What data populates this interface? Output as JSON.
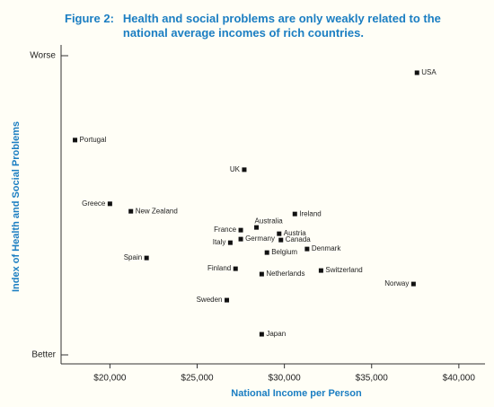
{
  "chart_data": {
    "type": "scatter",
    "figure_label": "Figure 2:",
    "title": "Health and social problems are only weakly related to the national average incomes of rich countries.",
    "x_label": "National Income per Person",
    "y_label": "Index of Health and Social Problems",
    "color": "#111111",
    "xlim": [
      17200,
      41500
    ],
    "xticks": [
      {
        "value": 20000,
        "label": "$20,000"
      },
      {
        "value": 25000,
        "label": "$25,000"
      },
      {
        "value": 30000,
        "label": "$30,000"
      },
      {
        "value": 35000,
        "label": "$35,000"
      },
      {
        "value": 40000,
        "label": "$40,000"
      }
    ],
    "ylim": [
      -3,
      103
    ],
    "yticks": [
      {
        "value": 0,
        "label": "Better"
      },
      {
        "value": 100,
        "label": "Worse"
      }
    ],
    "points": [
      {
        "name": "USA",
        "x": 37600,
        "y": 94.3
      },
      {
        "name": "Portugal",
        "x": 18000,
        "y": 71.8
      },
      {
        "name": "UK",
        "x": 27700,
        "y": 61.9
      },
      {
        "name": "Greece",
        "x": 20000,
        "y": 50.5
      },
      {
        "name": "New Zealand",
        "x": 21200,
        "y": 48.0
      },
      {
        "name": "Ireland",
        "x": 30600,
        "y": 47.1
      },
      {
        "name": "Australia",
        "x": 28400,
        "y": 42.6
      },
      {
        "name": "France",
        "x": 27500,
        "y": 41.7
      },
      {
        "name": "Austria",
        "x": 29700,
        "y": 40.5
      },
      {
        "name": "Germany",
        "x": 27500,
        "y": 38.7
      },
      {
        "name": "Canada",
        "x": 29800,
        "y": 38.4
      },
      {
        "name": "Italy",
        "x": 26900,
        "y": 37.5
      },
      {
        "name": "Belgium",
        "x": 29000,
        "y": 34.2
      },
      {
        "name": "Denmark",
        "x": 31300,
        "y": 35.4
      },
      {
        "name": "Spain",
        "x": 22100,
        "y": 32.4
      },
      {
        "name": "Finland",
        "x": 27200,
        "y": 28.8
      },
      {
        "name": "Switzerland",
        "x": 32100,
        "y": 28.2
      },
      {
        "name": "Netherlands",
        "x": 28700,
        "y": 27.0
      },
      {
        "name": "Norway",
        "x": 37400,
        "y": 23.7
      },
      {
        "name": "Sweden",
        "x": 26700,
        "y": 18.3
      },
      {
        "name": "Japan",
        "x": 28700,
        "y": 6.9
      }
    ]
  }
}
